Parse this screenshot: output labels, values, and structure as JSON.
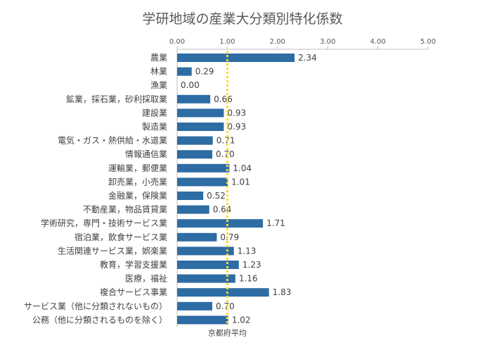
{
  "chart_data": {
    "type": "bar",
    "orientation": "horizontal",
    "title": "学研地域の産業大分類別特化係数",
    "categories": [
      "農業",
      "林業",
      "漁業",
      "鉱業，採石業，砂利採取業",
      "建設業",
      "製造業",
      "電気・ガス・熱供給・水道業",
      "情報通信業",
      "運輸業，郵便業",
      "卸売業，小売業",
      "金融業，保険業",
      "不動産業，物品賃貸業",
      "学術研究，専門・技術サービス業",
      "宿泊業，飲食サービス業",
      "生活関連サービス業，娯楽業",
      "教育，学習支援業",
      "医療，福祉",
      "複合サービス事業",
      "サービス業（他に分類されないもの）",
      "公務（他に分類されるものを除く）"
    ],
    "values": [
      2.34,
      0.29,
      0.0,
      0.66,
      0.93,
      0.93,
      0.71,
      0.7,
      1.04,
      1.01,
      0.52,
      0.64,
      1.71,
      0.79,
      1.13,
      1.23,
      1.16,
      1.83,
      0.7,
      1.02
    ],
    "value_labels": [
      "2.34",
      "0.29",
      "0.00",
      "0.66",
      "0.93",
      "0.93",
      "0.71",
      "0.70",
      "1.04",
      "1.01",
      "0.52",
      "0.64",
      "1.71",
      "0.79",
      "1.13",
      "1.23",
      "1.16",
      "1.83",
      "0.70",
      "1.02"
    ],
    "xlim": [
      0,
      5
    ],
    "x_ticks": [
      "0.00",
      "1.00",
      "2.00",
      "3.00",
      "4.00",
      "5.00"
    ],
    "x_tick_values": [
      0,
      1,
      2,
      3,
      4,
      5
    ],
    "reference_line": {
      "value": 1.0,
      "label": "京都府平均"
    },
    "grid": false,
    "colors": {
      "bar": "#2e6ca4",
      "reference": "#ffd92e",
      "axis": "#bfbfbf",
      "text": "#404040"
    }
  }
}
